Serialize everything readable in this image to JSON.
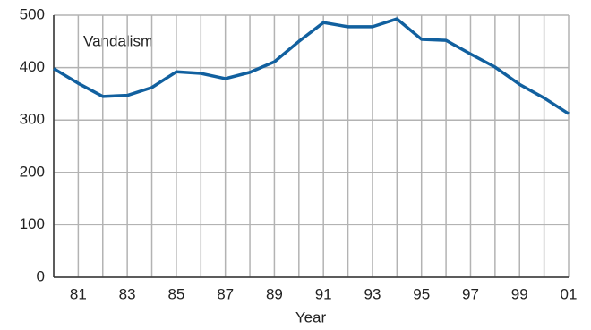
{
  "chart_data": {
    "type": "line",
    "annotation": "Vandalism",
    "x_label": "Year",
    "categories": [
      null,
      "81",
      null,
      "83",
      null,
      "85",
      null,
      "87",
      null,
      "89",
      null,
      "91",
      null,
      "93",
      null,
      "95",
      null,
      "97",
      null,
      "99",
      null,
      "01"
    ],
    "series": [
      {
        "name": "Vandalism",
        "color": "#11609f",
        "values": [
          398,
          370,
          345,
          347,
          362,
          392,
          389,
          379,
          391,
          411,
          450,
          486,
          478,
          478,
          493,
          454,
          452,
          426,
          401,
          368,
          342,
          312
        ]
      }
    ],
    "ylim": [
      0,
      500
    ],
    "yticks": [
      0,
      100,
      200,
      300,
      400,
      500
    ],
    "grid": true
  }
}
